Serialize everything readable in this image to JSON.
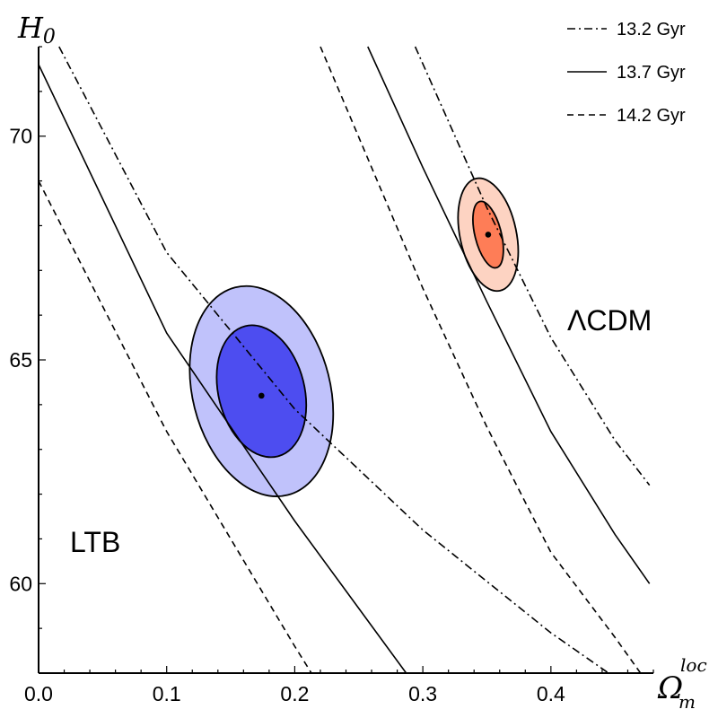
{
  "chart_data": {
    "type": "contour",
    "xlabel": "Ω",
    "xlabel_sub": "m",
    "xlabel_sup": "loc",
    "ylabel": "H",
    "ylabel_sub": "0",
    "xlim": [
      0.0,
      0.48
    ],
    "ylim": [
      58.0,
      72.0
    ],
    "xticks": [
      0.0,
      0.1,
      0.2,
      0.3,
      0.4
    ],
    "xtick_labels": [
      "0.0",
      "0.1",
      "0.2",
      "0.3",
      "0.4"
    ],
    "yticks": [
      60,
      65,
      70
    ],
    "ytick_labels": [
      "60",
      "65",
      "70"
    ],
    "legend": [
      {
        "label": "13.2 Gyr",
        "style": "dashdot"
      },
      {
        "label": "13.7 Gyr",
        "style": "solid"
      },
      {
        "label": "14.2 Gyr",
        "style": "dashed"
      }
    ],
    "legend_position": "top-right",
    "age_curves": [
      {
        "age": "13.2 Gyr",
        "style": "dashdot",
        "points": [
          [
            0.016,
            72.0
          ],
          [
            0.1,
            67.4
          ],
          [
            0.2,
            63.9
          ],
          [
            0.3,
            61.2
          ],
          [
            0.4,
            58.9
          ],
          [
            0.445,
            58.0
          ]
        ]
      },
      {
        "age": "13.7 Gyr",
        "style": "solid",
        "points": [
          [
            0.0,
            71.6
          ],
          [
            0.1,
            65.6
          ],
          [
            0.2,
            61.4
          ],
          [
            0.287,
            58.0
          ]
        ]
      },
      {
        "age": "14.2 Gyr",
        "style": "dashed",
        "points": [
          [
            0.0,
            69.0
          ],
          [
            0.1,
            63.4
          ],
          [
            0.2,
            58.6
          ],
          [
            0.213,
            58.0
          ]
        ]
      },
      {
        "age": "13.2 Gyr",
        "style": "dashdot",
        "points": [
          [
            0.294,
            72.0
          ],
          [
            0.35,
            68.4
          ],
          [
            0.4,
            65.5
          ],
          [
            0.45,
            63.2
          ],
          [
            0.477,
            62.2
          ]
        ]
      },
      {
        "age": "13.7 Gyr",
        "style": "solid",
        "points": [
          [
            0.257,
            72.0
          ],
          [
            0.3,
            69.3
          ],
          [
            0.35,
            66.3
          ],
          [
            0.4,
            63.4
          ],
          [
            0.45,
            61.1
          ],
          [
            0.477,
            60.0
          ]
        ]
      },
      {
        "age": "14.2 Gyr",
        "style": "dashed",
        "points": [
          [
            0.22,
            72.0
          ],
          [
            0.3,
            66.6
          ],
          [
            0.35,
            63.5
          ],
          [
            0.4,
            60.7
          ],
          [
            0.45,
            58.8
          ],
          [
            0.47,
            58.0
          ]
        ]
      }
    ],
    "fits": [
      {
        "label": "LTB",
        "best_fit": {
          "x": 0.174,
          "y": 64.2
        },
        "center": {
          "x": 0.174,
          "y": 64.3
        },
        "contours": [
          {
            "level": "2σ",
            "color": "#c0c2fb",
            "sigma_x": 0.0538,
            "sigma_y": 2.392,
            "angle_deg": -14.2
          },
          {
            "level": "1σ",
            "color": "#4d4df0",
            "sigma_x": 0.0336,
            "sigma_y": 1.5,
            "angle_deg": -14.0
          }
        ]
      },
      {
        "label": "ΛCDM",
        "best_fit": {
          "x": 0.351,
          "y": 67.8
        },
        "center": {
          "x": 0.351,
          "y": 67.8
        },
        "contours": [
          {
            "level": "2σ",
            "color": "#fdd3c2",
            "sigma_x": 0.022,
            "sigma_y": 1.281,
            "angle_deg": -12.0
          },
          {
            "level": "1σ",
            "color": "#fe7d57",
            "sigma_x": 0.0103,
            "sigma_y": 0.762,
            "angle_deg": -14.0
          }
        ]
      }
    ]
  }
}
